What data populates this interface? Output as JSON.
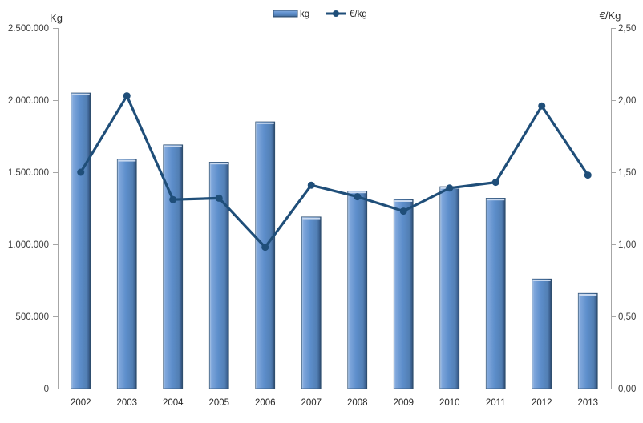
{
  "chart_data": {
    "type": "combo",
    "title": "",
    "categories": [
      "2002",
      "2003",
      "2004",
      "2005",
      "2006",
      "2007",
      "2008",
      "2009",
      "2010",
      "2011",
      "2012",
      "2013"
    ],
    "series": [
      {
        "name": "kg",
        "type": "bar",
        "axis": "left",
        "values": [
          2050000,
          1590000,
          1690000,
          1570000,
          1850000,
          1190000,
          1370000,
          1310000,
          1400000,
          1320000,
          760000,
          660000
        ]
      },
      {
        "name": "€/kg",
        "type": "line",
        "axis": "right",
        "values": [
          1.5,
          2.03,
          1.31,
          1.32,
          0.98,
          1.41,
          1.33,
          1.23,
          1.39,
          1.43,
          1.96,
          1.48
        ]
      }
    ],
    "left_axis": {
      "title": "Kg",
      "min": 0,
      "max": 2500000,
      "tick_labels": [
        "2.500.000",
        "2.000.000",
        "1.500.000",
        "1.000.000",
        "500.000",
        "0"
      ]
    },
    "right_axis": {
      "title": "€/Kg",
      "min": 0,
      "max": 2.5,
      "tick_labels": [
        "2,50",
        "2,00",
        "1,50",
        "1,00",
        "0,50",
        "0,00"
      ]
    },
    "legend": {
      "position": "top-center",
      "items": [
        {
          "label": "kg",
          "marker": "bar-swatch"
        },
        {
          "label": "€/kg",
          "marker": "line-with-dot"
        }
      ]
    },
    "grid": false,
    "colors": {
      "bar_fill": "#5d8ecb",
      "bar_light_edge": "#b9cfe9",
      "bar_dark_edge": "#2b4764",
      "bar_top_cap": "#c9d9ef",
      "bar_outline": "#2f4f70",
      "line": "#1f4e79",
      "axis": "#a6a6a6",
      "text": "#3c3c3c",
      "bar_gradient": [
        [
          "0%",
          "#b9cfe9"
        ],
        [
          "10%",
          "#7fa7dc"
        ],
        [
          "45%",
          "#5d8ecb"
        ],
        [
          "80%",
          "#527fb4"
        ],
        [
          "92%",
          "#3c6191"
        ],
        [
          "100%",
          "#2b4764"
        ]
      ]
    }
  }
}
